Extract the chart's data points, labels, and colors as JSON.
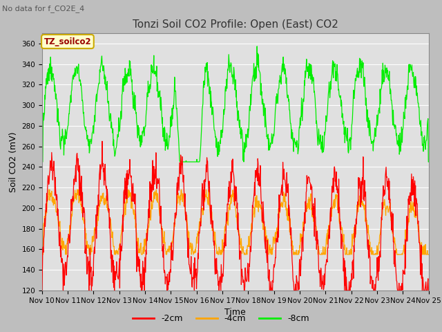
{
  "title": "Tonzi Soil CO2 Profile: Open (East) CO2",
  "subtitle": "No data for f_CO2E_4",
  "ylabel": "Soil CO2 (mV)",
  "xlabel": "Time",
  "legend_title": "TZ_soilco2",
  "legend_entries": [
    "-2cm",
    "-4cm",
    "-8cm"
  ],
  "line_colors": [
    "#ff0000",
    "#ffa500",
    "#00ee00"
  ],
  "fig_bg_color": "#bebebe",
  "plot_bg_color": "#e0e0e0",
  "ylim": [
    120,
    370
  ],
  "yticks": [
    120,
    140,
    160,
    180,
    200,
    220,
    240,
    260,
    280,
    300,
    320,
    340,
    360
  ],
  "x_labels": [
    "Nov 10",
    "Nov 11",
    "Nov 12",
    "Nov 13",
    "Nov 14",
    "Nov 15",
    "Nov 16",
    "Nov 17",
    "Nov 18",
    "Nov 19",
    "Nov 20",
    "Nov 21",
    "Nov 22",
    "Nov 23",
    "Nov 24",
    "Nov 25"
  ],
  "num_points": 1080,
  "start_day": 10,
  "end_day": 25,
  "title_fontsize": 11,
  "axis_label_fontsize": 9,
  "tick_fontsize": 7.5
}
